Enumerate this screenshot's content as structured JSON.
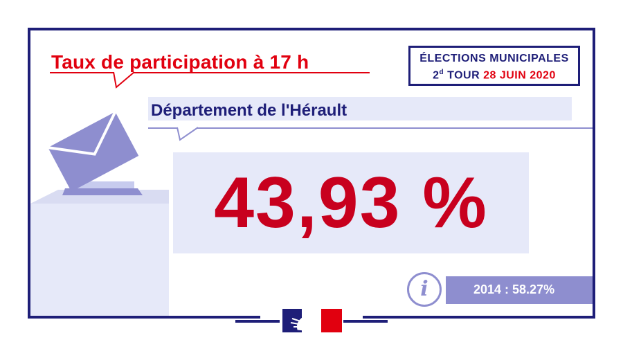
{
  "title": "Taux de participation à 17 h",
  "badge": {
    "line1": "ÉLECTIONS MUNICIPALES",
    "round_num": "2",
    "round_sup": "d",
    "round_word": "TOUR",
    "date": "28 JUIN 2020"
  },
  "department": "Département de l'Hérault",
  "turnout": "43,93 %",
  "previous": "2014 : 58.27%",
  "icons": {
    "ballot": "ballot-box-icon",
    "info": "info-icon",
    "logo": "marianne-logo"
  },
  "colors": {
    "navy": "#1e1e78",
    "red": "#e1000f",
    "pale": "#e6e9f9",
    "lavender": "#8e8ecf"
  }
}
